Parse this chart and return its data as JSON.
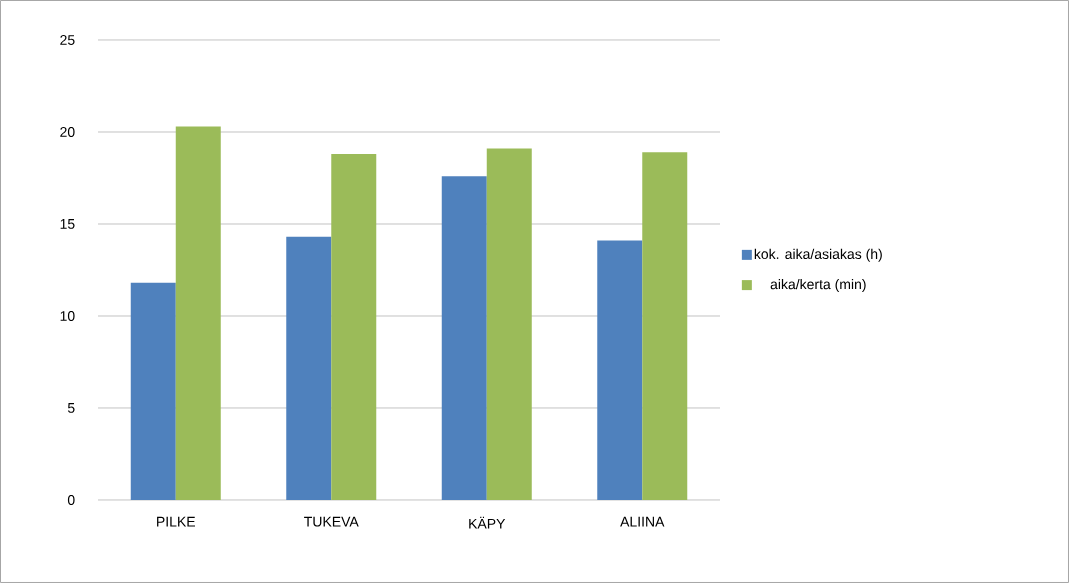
{
  "chart_data": {
    "type": "bar",
    "categories": [
      "PILKE",
      "TUKEVA",
      "KÄPY",
      "ALIINA"
    ],
    "series": [
      {
        "name": "kok. aika/asiakas (h)",
        "color": "#4f81bd",
        "values": [
          11.8,
          14.3,
          17.6,
          14.1
        ]
      },
      {
        "name": "aika/kerta (min)",
        "color": "#9bbb59",
        "values": [
          20.3,
          18.8,
          19.1,
          18.9
        ]
      }
    ],
    "ylim": [
      0,
      25
    ],
    "yticks": [
      0,
      5,
      10,
      15,
      20,
      25
    ],
    "grid": "y",
    "legend": "right"
  }
}
